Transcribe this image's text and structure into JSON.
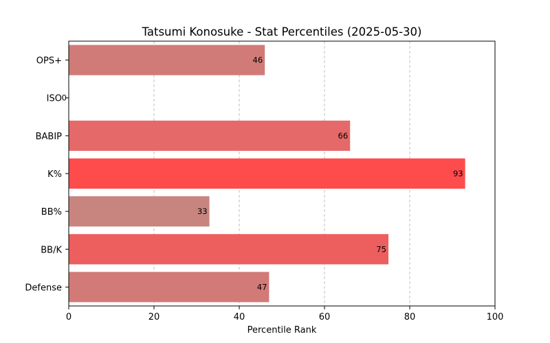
{
  "chart_data": {
    "type": "bar",
    "orientation": "horizontal",
    "title": "Tatsumi Konosuke - Stat Percentiles (2025-05-30)",
    "xlabel": "Percentile Rank",
    "ylabel": "",
    "xlim": [
      0,
      100
    ],
    "xticks": [
      "0",
      "20",
      "40",
      "60",
      "80",
      "100"
    ],
    "grid": "x-dashed",
    "categories": [
      "OPS+",
      "ISO",
      "BABIP",
      "K%",
      "BB%",
      "BB/K",
      "Defense"
    ],
    "values": [
      46,
      0,
      66,
      93,
      33,
      75,
      47
    ],
    "value_labels": [
      "46",
      "0",
      "66",
      "93",
      "33",
      "75",
      "47"
    ],
    "colors": [
      "#d17b79",
      "#c8867f",
      "#e46968",
      "#fe4c4c",
      "#c8857f",
      "#ec5f5e",
      "#d27a78"
    ]
  }
}
